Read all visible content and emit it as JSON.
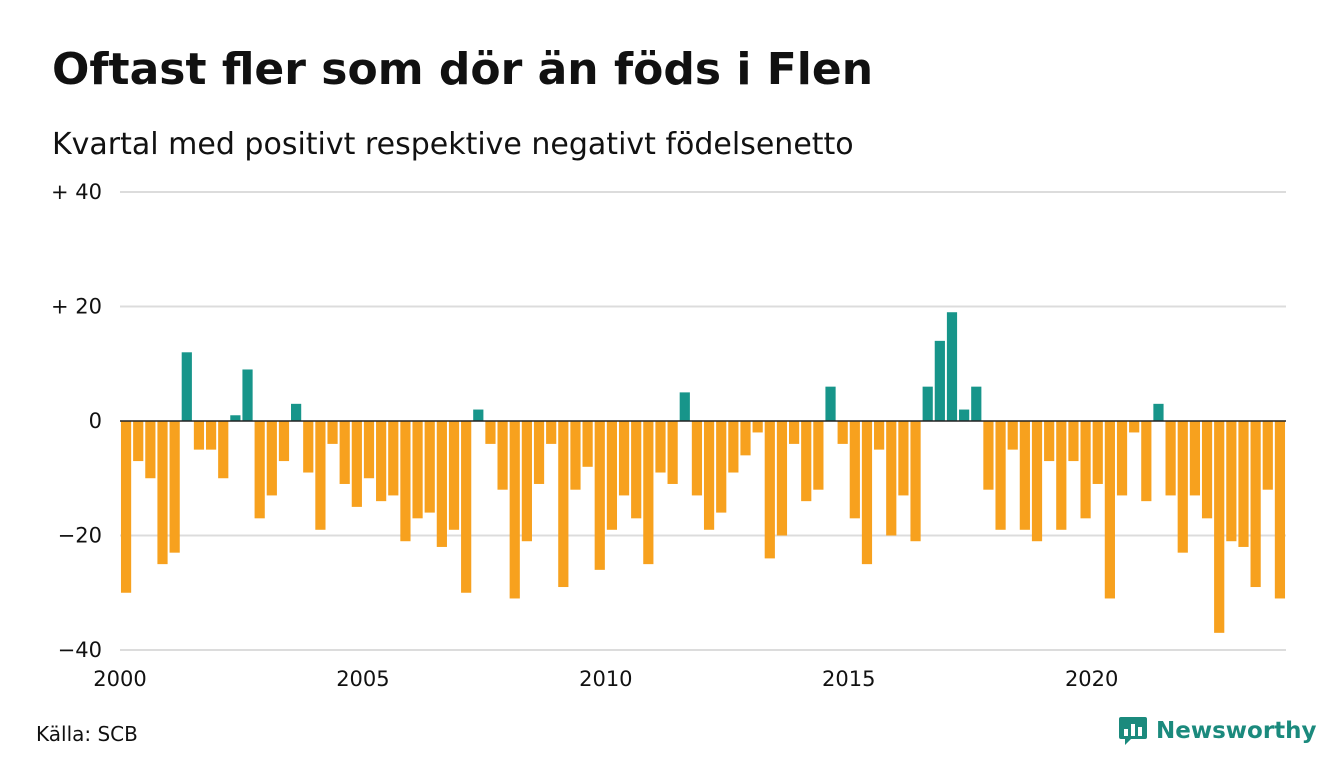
{
  "title": "Oftast fler som dör än föds i Flen",
  "subtitle": "Kvartal med positivt respektive negativt födelsenetto",
  "source": "Källa: SCB",
  "brand": "Newsworthy",
  "colors": {
    "positive": "#17958a",
    "negative": "#f7a11e",
    "grid": "#dcdcdc",
    "baseline": "#222222",
    "brand": "#1b8a7d"
  },
  "chart_data": {
    "type": "bar",
    "ylim": [
      -40,
      40
    ],
    "yticks": [
      {
        "value": 40,
        "label": "+ 40"
      },
      {
        "value": 20,
        "label": "+ 20"
      },
      {
        "value": 0,
        "label": "0"
      },
      {
        "value": -20,
        "label": "−20"
      },
      {
        "value": -40,
        "label": "−40"
      }
    ],
    "x_start": 2000,
    "xlim": [
      2000,
      2024
    ],
    "xticks": [
      "2000",
      "2005",
      "2010",
      "2015",
      "2020"
    ],
    "grid": true,
    "categories": [
      "2000 K1",
      "2000 K2",
      "2000 K3",
      "2000 K4",
      "2001 K1",
      "2001 K2",
      "2001 K3",
      "2001 K4",
      "2002 K1",
      "2002 K2",
      "2002 K3",
      "2002 K4",
      "2003 K1",
      "2003 K2",
      "2003 K3",
      "2003 K4",
      "2004 K1",
      "2004 K2",
      "2004 K3",
      "2004 K4",
      "2005 K1",
      "2005 K2",
      "2005 K3",
      "2005 K4",
      "2006 K1",
      "2006 K2",
      "2006 K3",
      "2006 K4",
      "2007 K1",
      "2007 K2",
      "2007 K3",
      "2007 K4",
      "2008 K1",
      "2008 K2",
      "2008 K3",
      "2008 K4",
      "2009 K1",
      "2009 K2",
      "2009 K3",
      "2009 K4",
      "2010 K1",
      "2010 K2",
      "2010 K3",
      "2010 K4",
      "2011 K1",
      "2011 K2",
      "2011 K3",
      "2011 K4",
      "2012 K1",
      "2012 K2",
      "2012 K3",
      "2012 K4",
      "2013 K1",
      "2013 K2",
      "2013 K3",
      "2013 K4",
      "2014 K1",
      "2014 K2",
      "2014 K3",
      "2014 K4",
      "2015 K1",
      "2015 K2",
      "2015 K3",
      "2015 K4",
      "2016 K1",
      "2016 K2",
      "2016 K3",
      "2016 K4",
      "2017 K1",
      "2017 K2",
      "2017 K3",
      "2017 K4",
      "2018 K1",
      "2018 K2",
      "2018 K3",
      "2018 K4",
      "2019 K1",
      "2019 K2",
      "2019 K3",
      "2019 K4",
      "2020 K1",
      "2020 K2",
      "2020 K3",
      "2020 K4",
      "2021 K1",
      "2021 K2",
      "2021 K3",
      "2021 K4",
      "2022 K1",
      "2022 K2",
      "2022 K3",
      "2022 K4",
      "2023 K1",
      "2023 K2",
      "2023 K3",
      "2023 K4"
    ],
    "values": [
      -30,
      -7,
      -10,
      -25,
      -23,
      12,
      -5,
      -5,
      -10,
      1,
      9,
      -17,
      -13,
      -7,
      3,
      -9,
      -19,
      -4,
      -11,
      -15,
      -10,
      -14,
      -13,
      -21,
      -17,
      -16,
      -22,
      -19,
      -30,
      2,
      -4,
      -12,
      -31,
      -21,
      -11,
      -4,
      -29,
      -12,
      -8,
      -26,
      -19,
      -13,
      -17,
      -25,
      -9,
      -11,
      5,
      -13,
      -19,
      -16,
      -9,
      -6,
      -2,
      -24,
      -20,
      -4,
      -14,
      -12,
      6,
      -4,
      -17,
      -25,
      -5,
      -20,
      -13,
      -21,
      6,
      14,
      19,
      2,
      6,
      -12,
      -19,
      -5,
      -19,
      -21,
      -7,
      -19,
      -7,
      -17,
      -11,
      -31,
      -13,
      -2,
      -14,
      3,
      -13,
      -23,
      -13,
      -17,
      -37,
      -21,
      -22,
      -29,
      -12,
      -31
    ]
  }
}
